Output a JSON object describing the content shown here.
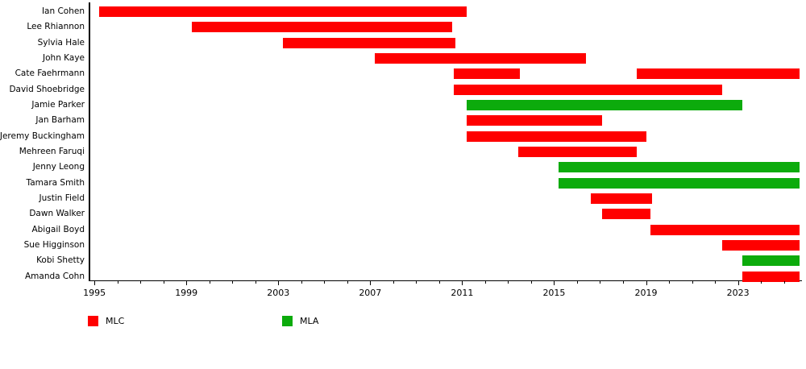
{
  "chart_data": {
    "type": "gantt",
    "title": "",
    "description": "Timeline of NSW Greens members of parliament, red bars for Legislative Council (MLC) terms and green bars for Legislative Assembly (MLA) terms",
    "x_axis": {
      "range": [
        1994.75,
        2025.75
      ],
      "major_tick_years": [
        1995,
        1999,
        2003,
        2007,
        2011,
        2015,
        2019,
        2023
      ],
      "tick_labels": [
        "1995",
        "1999",
        "2003",
        "2007",
        "2011",
        "2015",
        "2019",
        "2023"
      ],
      "minor_tick_interval": 1,
      "minor_tick_start": 1995,
      "minor_tick_end": 2025
    },
    "colors": {
      "MLC": "#ff0000",
      "MLA": "#0cab0c"
    },
    "legend": [
      {
        "label": "MLC",
        "color": "#ff0000"
      },
      {
        "label": "MLA",
        "color": "#0cab0c"
      }
    ],
    "people": [
      {
        "name": "Ian Cohen",
        "segments": [
          {
            "start": 1995.2,
            "end": 2011.2,
            "house": "MLC"
          }
        ]
      },
      {
        "name": "Lee Rhiannon",
        "segments": [
          {
            "start": 1999.25,
            "end": 2010.55,
            "house": "MLC"
          }
        ]
      },
      {
        "name": "Sylvia Hale",
        "segments": [
          {
            "start": 2003.2,
            "end": 2010.7,
            "house": "MLC"
          }
        ]
      },
      {
        "name": "John Kaye",
        "segments": [
          {
            "start": 2007.2,
            "end": 2016.4,
            "house": "MLC"
          }
        ]
      },
      {
        "name": "Cate Faehrmann",
        "segments": [
          {
            "start": 2010.65,
            "end": 2013.5,
            "house": "MLC"
          },
          {
            "start": 2018.6,
            "end": 2025.67,
            "house": "MLC"
          }
        ]
      },
      {
        "name": "David Shoebridge",
        "segments": [
          {
            "start": 2010.65,
            "end": 2022.3,
            "house": "MLC"
          }
        ]
      },
      {
        "name": "Jamie Parker",
        "segments": [
          {
            "start": 2011.2,
            "end": 2023.2,
            "house": "MLA"
          }
        ]
      },
      {
        "name": "Jan Barham",
        "segments": [
          {
            "start": 2011.2,
            "end": 2017.1,
            "house": "MLC"
          }
        ]
      },
      {
        "name": "Jeremy Buckingham",
        "segments": [
          {
            "start": 2011.2,
            "end": 2019.0,
            "house": "MLC"
          }
        ]
      },
      {
        "name": "Mehreen Faruqi",
        "segments": [
          {
            "start": 2013.45,
            "end": 2018.6,
            "house": "MLC"
          }
        ]
      },
      {
        "name": "Jenny Leong",
        "segments": [
          {
            "start": 2015.2,
            "end": 2025.67,
            "house": "MLA"
          }
        ]
      },
      {
        "name": "Tamara Smith",
        "segments": [
          {
            "start": 2015.2,
            "end": 2025.67,
            "house": "MLA"
          }
        ]
      },
      {
        "name": "Justin Field",
        "segments": [
          {
            "start": 2016.6,
            "end": 2019.25,
            "house": "MLC"
          }
        ]
      },
      {
        "name": "Dawn Walker",
        "segments": [
          {
            "start": 2017.1,
            "end": 2019.2,
            "house": "MLC"
          }
        ]
      },
      {
        "name": "Abigail Boyd",
        "segments": [
          {
            "start": 2019.2,
            "end": 2025.67,
            "house": "MLC"
          }
        ]
      },
      {
        "name": "Sue Higginson",
        "segments": [
          {
            "start": 2022.3,
            "end": 2025.67,
            "house": "MLC"
          }
        ]
      },
      {
        "name": "Kobi Shetty",
        "segments": [
          {
            "start": 2023.2,
            "end": 2025.67,
            "house": "MLA"
          }
        ]
      },
      {
        "name": "Amanda Cohn",
        "segments": [
          {
            "start": 2023.2,
            "end": 2025.67,
            "house": "MLC"
          }
        ]
      }
    ]
  }
}
